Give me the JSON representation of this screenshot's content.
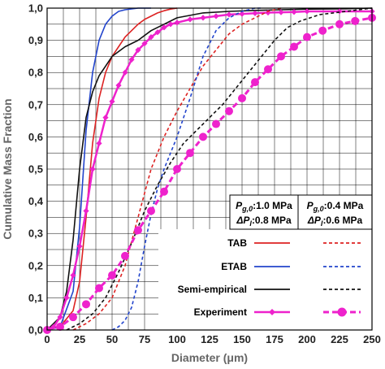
{
  "chart_data": {
    "type": "line",
    "xlabel": "Diameter (μm)",
    "ylabel": "Cumulative Mass Fraction",
    "xlim": [
      0,
      250
    ],
    "ylim": [
      0,
      1.0
    ],
    "x_ticks": [
      "0",
      "25",
      "50",
      "75",
      "100",
      "125",
      "150",
      "175",
      "200",
      "225",
      "250"
    ],
    "y_ticks": [
      "0,0",
      "0,1",
      "0,2",
      "0,3",
      "0,4",
      "0,5",
      "0,6",
      "0,7",
      "0,8",
      "0,9",
      "1,0"
    ],
    "grid": true,
    "legend": {
      "placement": "bottom-right",
      "condition_1": {
        "p_symbol": "P",
        "p_sub": "g,0",
        "p_value": ":1.0 MPa",
        "dp_symbol": "ΔP",
        "dp_sub": "l",
        "dp_value": ":0.8 MPa"
      },
      "condition_2": {
        "p_symbol": "P",
        "p_sub": "g,0",
        "p_value": ":0.4 MPa",
        "dp_symbol": "ΔP",
        "dp_sub": "l",
        "dp_value": ":0.6 MPa"
      },
      "rows": [
        "TAB",
        "ETAB",
        "Semi-empirical",
        "Experiment"
      ]
    },
    "colors": {
      "TAB": "#dd2222",
      "ETAB": "#2244cc",
      "Semi-empirical": "#111111",
      "Experiment": "#ee22cc"
    },
    "series": [
      {
        "name": "TAB",
        "condition": 1,
        "style": "solid",
        "x": [
          0,
          10,
          20,
          25,
          30,
          35,
          40,
          45,
          50,
          55,
          60,
          65,
          70,
          75,
          80,
          85,
          90,
          95,
          100
        ],
        "y": [
          0,
          0.01,
          0.06,
          0.15,
          0.35,
          0.58,
          0.72,
          0.8,
          0.85,
          0.88,
          0.91,
          0.93,
          0.95,
          0.965,
          0.975,
          0.985,
          0.992,
          0.997,
          1.0
        ]
      },
      {
        "name": "ETAB",
        "condition": 1,
        "style": "solid",
        "x": [
          0,
          10,
          20,
          25,
          30,
          35,
          40,
          45,
          50,
          55,
          60,
          70,
          80
        ],
        "y": [
          0,
          0.01,
          0.12,
          0.32,
          0.62,
          0.8,
          0.9,
          0.95,
          0.975,
          0.99,
          0.995,
          1.0,
          1.0
        ]
      },
      {
        "name": "Semi-empirical",
        "condition": 1,
        "style": "solid",
        "x": [
          0,
          10,
          15,
          20,
          25,
          30,
          35,
          40,
          50,
          60,
          70,
          80,
          90,
          100,
          120,
          140,
          160,
          180,
          200,
          230,
          250
        ],
        "y": [
          0,
          0.04,
          0.12,
          0.28,
          0.5,
          0.66,
          0.74,
          0.79,
          0.85,
          0.88,
          0.9,
          0.93,
          0.95,
          0.97,
          0.985,
          0.99,
          0.993,
          0.995,
          0.997,
          0.998,
          1.0
        ]
      },
      {
        "name": "Experiment",
        "condition": 1,
        "style": "solid-marker",
        "x": [
          0,
          5,
          10,
          15,
          20,
          25,
          30,
          35,
          40,
          45,
          50,
          55,
          60,
          65,
          70,
          75,
          80,
          85,
          90,
          95,
          100,
          110,
          120,
          130,
          140,
          150,
          160,
          170,
          180,
          190,
          200,
          225,
          250
        ],
        "y": [
          0,
          0.01,
          0.04,
          0.1,
          0.17,
          0.26,
          0.37,
          0.5,
          0.58,
          0.66,
          0.71,
          0.76,
          0.8,
          0.84,
          0.87,
          0.89,
          0.91,
          0.925,
          0.94,
          0.95,
          0.955,
          0.965,
          0.97,
          0.975,
          0.98,
          0.982,
          0.984,
          0.986,
          0.987,
          0.988,
          0.99,
          0.99,
          0.99
        ]
      },
      {
        "name": "TAB",
        "condition": 2,
        "style": "dashed",
        "x": [
          20,
          30,
          40,
          50,
          60,
          70,
          80,
          90,
          100,
          110,
          120,
          130,
          140,
          150,
          160,
          170,
          180
        ],
        "y": [
          0,
          0.02,
          0.05,
          0.1,
          0.2,
          0.35,
          0.5,
          0.6,
          0.68,
          0.75,
          0.82,
          0.87,
          0.92,
          0.95,
          0.97,
          0.99,
          1.0
        ]
      },
      {
        "name": "ETAB",
        "condition": 2,
        "style": "dashed",
        "x": [
          50,
          55,
          60,
          65,
          70,
          75,
          80,
          85,
          90,
          100,
          110,
          120,
          130,
          140,
          150,
          160,
          165
        ],
        "y": [
          0,
          0.01,
          0.03,
          0.07,
          0.15,
          0.26,
          0.36,
          0.44,
          0.5,
          0.6,
          0.72,
          0.85,
          0.93,
          0.97,
          0.99,
          1.0,
          1.0
        ]
      },
      {
        "name": "Semi-empirical",
        "condition": 2,
        "style": "dashed",
        "x": [
          15,
          25,
          35,
          45,
          55,
          65,
          75,
          85,
          95,
          105,
          115,
          125,
          135,
          145,
          155,
          165,
          175,
          185,
          195,
          210,
          230,
          250
        ],
        "y": [
          0,
          0.02,
          0.05,
          0.1,
          0.18,
          0.27,
          0.37,
          0.45,
          0.52,
          0.58,
          0.62,
          0.66,
          0.7,
          0.75,
          0.8,
          0.85,
          0.9,
          0.94,
          0.96,
          0.98,
          0.99,
          1.0
        ]
      },
      {
        "name": "Experiment",
        "condition": 2,
        "style": "dashed-marker",
        "x": [
          0,
          10,
          20,
          30,
          40,
          50,
          60,
          70,
          80,
          90,
          100,
          110,
          120,
          130,
          140,
          150,
          160,
          170,
          180,
          190,
          200,
          212,
          225,
          237,
          250
        ],
        "y": [
          0,
          0.01,
          0.04,
          0.08,
          0.13,
          0.17,
          0.23,
          0.31,
          0.37,
          0.43,
          0.5,
          0.55,
          0.6,
          0.64,
          0.68,
          0.72,
          0.77,
          0.81,
          0.85,
          0.88,
          0.91,
          0.93,
          0.95,
          0.96,
          0.97
        ]
      }
    ]
  }
}
